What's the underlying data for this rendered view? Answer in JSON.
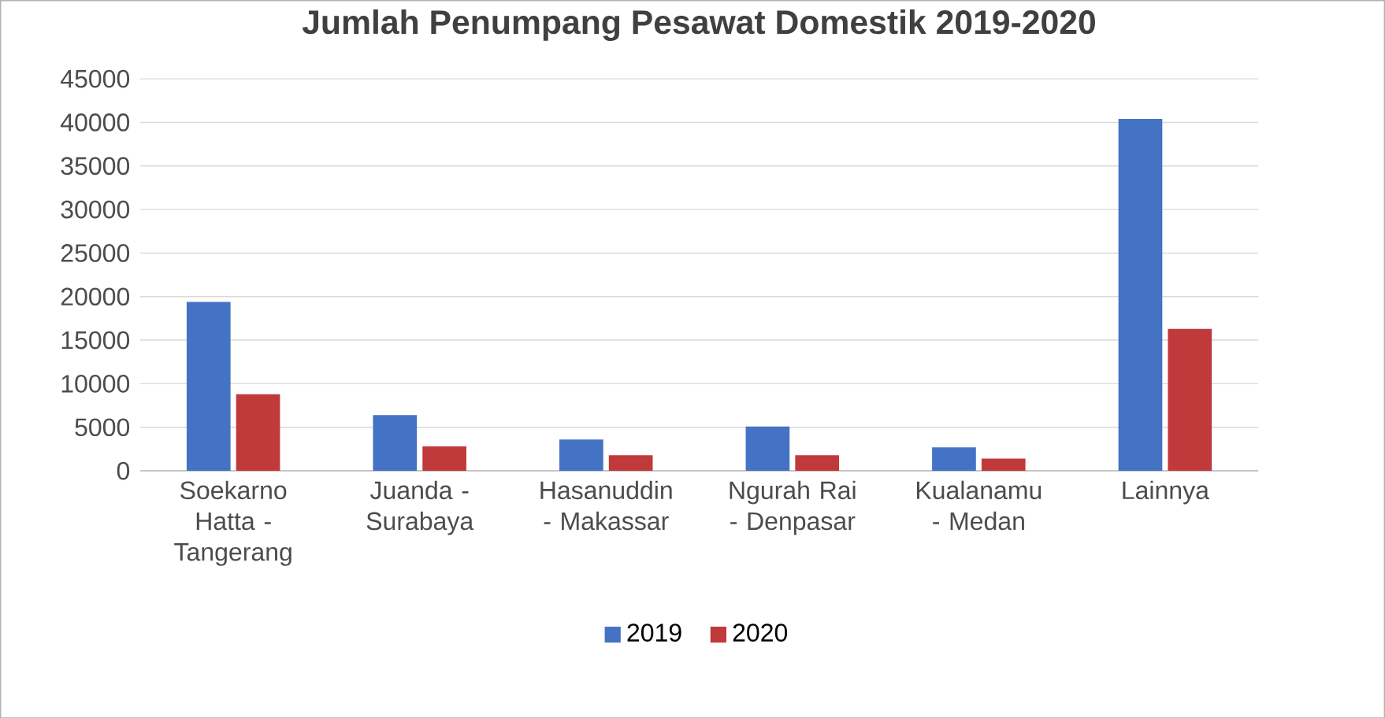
{
  "chart_data": {
    "type": "bar",
    "title": "Jumlah Penumpang Pesawat Domestik 2019-2020",
    "categories": [
      "Soekarno Hatta - Tangerang",
      "Juanda - Surabaya",
      "Hasanuddin - Makassar",
      "Ngurah Rai - Denpasar",
      "Kualanamu - Medan",
      "Lainnya"
    ],
    "series": [
      {
        "name": "2019",
        "color": "#4472c4",
        "values": [
          19400,
          6400,
          3600,
          5100,
          2700,
          40400
        ]
      },
      {
        "name": "2020",
        "color": "#c0393b",
        "values": [
          8800,
          2800,
          1800,
          1800,
          1400,
          16300
        ]
      }
    ],
    "ylim": [
      0,
      45000
    ],
    "yticks": [
      0,
      5000,
      10000,
      15000,
      20000,
      25000,
      30000,
      35000,
      40000,
      45000
    ],
    "grid": "y",
    "legend": "bottom"
  }
}
